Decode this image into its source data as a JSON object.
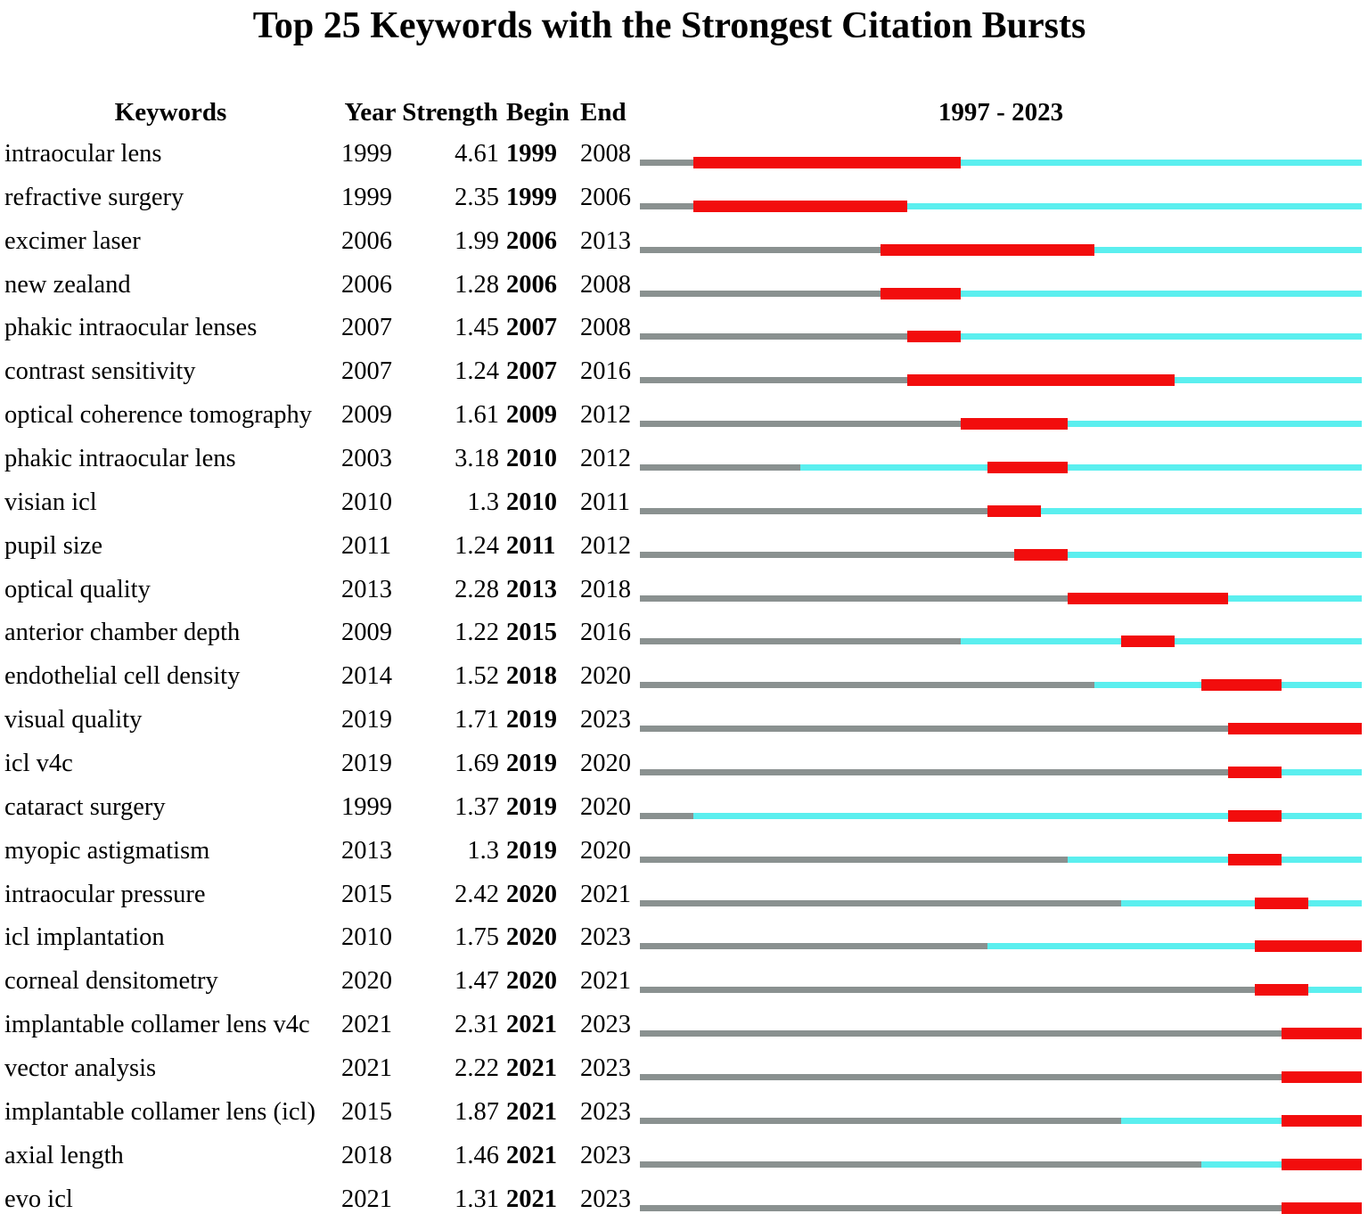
{
  "title": "Top 25 Keywords with the Strongest Citation Bursts",
  "header": {
    "keywords": "Keywords",
    "year": "Year",
    "strength": "Strength",
    "begin": "Begin",
    "end": "End",
    "range": "1997 - 2023"
  },
  "colors": {
    "pre_period": "#8A9190",
    "active_period": "#5BEFEF",
    "burst_period": "#F20D0D",
    "text": "#000000"
  },
  "chart_data": {
    "type": "table",
    "title": "Top 25 Keywords with the Strongest Citation Bursts",
    "columns": [
      "Keywords",
      "Year",
      "Strength",
      "Begin",
      "End"
    ],
    "timeline": {
      "label": "1997 - 2023",
      "start_year": 1997,
      "end_year": 2023
    },
    "rows": [
      {
        "keyword": "intraocular lens",
        "year": 1999,
        "strength": "4.61",
        "begin": 1999,
        "end": 2008
      },
      {
        "keyword": "refractive surgery",
        "year": 1999,
        "strength": "2.35",
        "begin": 1999,
        "end": 2006
      },
      {
        "keyword": "excimer laser",
        "year": 2006,
        "strength": "1.99",
        "begin": 2006,
        "end": 2013
      },
      {
        "keyword": "new zealand",
        "year": 2006,
        "strength": "1.28",
        "begin": 2006,
        "end": 2008
      },
      {
        "keyword": "phakic intraocular lenses",
        "year": 2007,
        "strength": "1.45",
        "begin": 2007,
        "end": 2008
      },
      {
        "keyword": "contrast sensitivity",
        "year": 2007,
        "strength": "1.24",
        "begin": 2007,
        "end": 2016
      },
      {
        "keyword": "optical coherence tomography",
        "year": 2009,
        "strength": "1.61",
        "begin": 2009,
        "end": 2012
      },
      {
        "keyword": "phakic intraocular lens",
        "year": 2003,
        "strength": "3.18",
        "begin": 2010,
        "end": 2012
      },
      {
        "keyword": "visian icl",
        "year": 2010,
        "strength": "1.3",
        "begin": 2010,
        "end": 2011
      },
      {
        "keyword": "pupil size",
        "year": 2011,
        "strength": "1.24",
        "begin": 2011,
        "end": 2012
      },
      {
        "keyword": "optical quality",
        "year": 2013,
        "strength": "2.28",
        "begin": 2013,
        "end": 2018
      },
      {
        "keyword": "anterior chamber depth",
        "year": 2009,
        "strength": "1.22",
        "begin": 2015,
        "end": 2016
      },
      {
        "keyword": "endothelial cell density",
        "year": 2014,
        "strength": "1.52",
        "begin": 2018,
        "end": 2020
      },
      {
        "keyword": "visual quality",
        "year": 2019,
        "strength": "1.71",
        "begin": 2019,
        "end": 2023
      },
      {
        "keyword": "icl v4c",
        "year": 2019,
        "strength": "1.69",
        "begin": 2019,
        "end": 2020
      },
      {
        "keyword": "cataract surgery",
        "year": 1999,
        "strength": "1.37",
        "begin": 2019,
        "end": 2020
      },
      {
        "keyword": "myopic astigmatism",
        "year": 2013,
        "strength": "1.3",
        "begin": 2019,
        "end": 2020
      },
      {
        "keyword": "intraocular pressure",
        "year": 2015,
        "strength": "2.42",
        "begin": 2020,
        "end": 2021
      },
      {
        "keyword": "icl implantation",
        "year": 2010,
        "strength": "1.75",
        "begin": 2020,
        "end": 2023
      },
      {
        "keyword": "corneal densitometry",
        "year": 2020,
        "strength": "1.47",
        "begin": 2020,
        "end": 2021
      },
      {
        "keyword": "implantable collamer lens v4c",
        "year": 2021,
        "strength": "2.31",
        "begin": 2021,
        "end": 2023
      },
      {
        "keyword": "vector analysis",
        "year": 2021,
        "strength": "2.22",
        "begin": 2021,
        "end": 2023
      },
      {
        "keyword": "implantable collamer lens (icl)",
        "year": 2015,
        "strength": "1.87",
        "begin": 2021,
        "end": 2023
      },
      {
        "keyword": "axial length",
        "year": 2018,
        "strength": "1.46",
        "begin": 2021,
        "end": 2023
      },
      {
        "keyword": "evo icl",
        "year": 2021,
        "strength": "1.31",
        "begin": 2021,
        "end": 2023
      }
    ]
  }
}
